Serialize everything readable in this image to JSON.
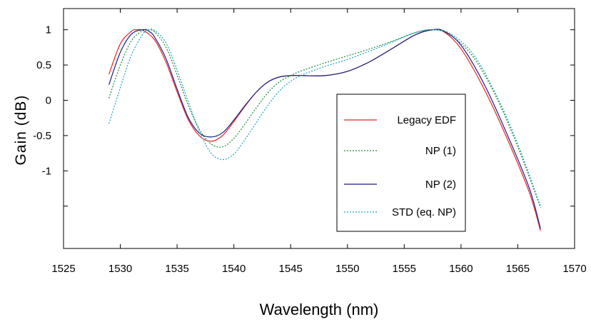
{
  "chart_data": {
    "type": "line",
    "title": "",
    "xlabel": "Wavelength (nm)",
    "ylabel": "Gain (dB)",
    "xlim": [
      1525,
      1570
    ],
    "ylim": [
      -2.1,
      1.3
    ],
    "xticks": [
      1525,
      1530,
      1535,
      1540,
      1545,
      1550,
      1555,
      1560,
      1565,
      1570
    ],
    "xtick_labels": [
      "1525",
      "1530",
      "1535",
      "1540",
      "1545",
      "1550",
      "1555",
      "1560",
      "1565",
      "1570"
    ],
    "yticks": [
      1,
      0.5,
      0,
      -0.5,
      -1,
      -1.5
    ],
    "ytick_labels": [
      "1",
      "0.5",
      "0",
      "-0.5",
      "-1",
      ""
    ],
    "grid": false,
    "legend_position": "center-right",
    "series": [
      {
        "name": "Legacy EDF",
        "color": "#e8262b",
        "dash": "solid",
        "x": [
          1529,
          1530,
          1531,
          1531.5,
          1532,
          1533,
          1534,
          1535,
          1536,
          1537,
          1538,
          1539,
          1540,
          1541,
          1542,
          1543,
          1544,
          1545,
          1546,
          1548,
          1550,
          1552,
          1554,
          1556,
          1557.5,
          1558.5,
          1560,
          1562,
          1564,
          1566,
          1567
        ],
        "y": [
          0.37,
          0.8,
          0.98,
          1.0,
          0.99,
          0.86,
          0.55,
          0.12,
          -0.28,
          -0.51,
          -0.58,
          -0.5,
          -0.3,
          -0.08,
          0.12,
          0.26,
          0.33,
          0.35,
          0.35,
          0.35,
          0.41,
          0.55,
          0.74,
          0.93,
          1.0,
          0.97,
          0.73,
          0.17,
          -0.52,
          -1.3,
          -1.85
        ]
      },
      {
        "name": "NP (1)",
        "color": "#1d8a3a",
        "dash": "2 2",
        "x": [
          1529,
          1530,
          1531,
          1532,
          1532.5,
          1533,
          1534,
          1535,
          1536,
          1537,
          1538,
          1539,
          1540,
          1541,
          1542,
          1543,
          1544,
          1545,
          1546,
          1548,
          1550,
          1552,
          1554,
          1556,
          1557.5,
          1559,
          1561,
          1563,
          1565,
          1567
        ],
        "y": [
          0.03,
          0.5,
          0.85,
          0.99,
          1.0,
          0.97,
          0.76,
          0.36,
          -0.08,
          -0.42,
          -0.62,
          -0.66,
          -0.54,
          -0.33,
          -0.1,
          0.11,
          0.26,
          0.35,
          0.42,
          0.53,
          0.63,
          0.73,
          0.84,
          0.96,
          1.0,
          0.93,
          0.63,
          0.08,
          -0.66,
          -1.52
        ]
      },
      {
        "name": "NP (2)",
        "color": "#1b1f85",
        "dash": "solid",
        "x": [
          1529,
          1530,
          1531,
          1532,
          1532.5,
          1533,
          1534,
          1535,
          1536,
          1537,
          1538,
          1539,
          1540,
          1541,
          1542,
          1543,
          1544,
          1545,
          1546,
          1548,
          1550,
          1552,
          1554,
          1556,
          1557.5,
          1558.5,
          1560,
          1562,
          1564,
          1566,
          1567
        ],
        "y": [
          0.22,
          0.68,
          0.94,
          1.0,
          0.98,
          0.9,
          0.6,
          0.16,
          -0.25,
          -0.47,
          -0.52,
          -0.46,
          -0.28,
          -0.07,
          0.12,
          0.26,
          0.33,
          0.35,
          0.35,
          0.35,
          0.41,
          0.55,
          0.74,
          0.93,
          1.0,
          0.98,
          0.78,
          0.24,
          -0.46,
          -1.24,
          -1.82
        ]
      },
      {
        "name": "STD (eq. NP)",
        "color": "#1aa3c4",
        "dash": "2 2",
        "x": [
          1529,
          1530,
          1531,
          1532,
          1532.5,
          1533,
          1534,
          1535,
          1536,
          1537,
          1538,
          1539,
          1540,
          1541,
          1542,
          1543,
          1544,
          1545,
          1546,
          1547,
          1548,
          1550,
          1552,
          1554,
          1556,
          1557.5,
          1559,
          1561,
          1563,
          1565,
          1567
        ],
        "y": [
          -0.33,
          0.18,
          0.65,
          0.94,
          1.0,
          0.99,
          0.82,
          0.43,
          -0.03,
          -0.45,
          -0.75,
          -0.84,
          -0.76,
          -0.55,
          -0.31,
          -0.07,
          0.13,
          0.27,
          0.36,
          0.42,
          0.48,
          0.58,
          0.7,
          0.83,
          0.96,
          1.0,
          0.95,
          0.67,
          0.11,
          -0.62,
          -1.5
        ]
      }
    ]
  }
}
